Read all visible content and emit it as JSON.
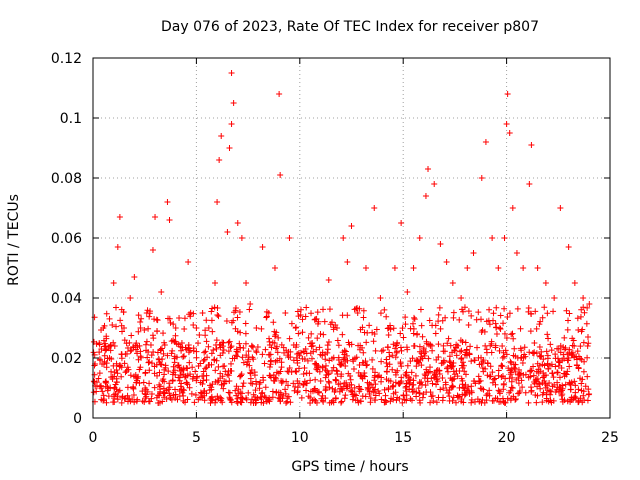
{
  "chart_data": {
    "type": "scatter",
    "title": "Day 076 of 2023, Rate Of TEC Index for receiver p807",
    "xlabel": "GPS time / hours",
    "ylabel": "ROTI / TECUs",
    "xlim": [
      0,
      25
    ],
    "ylim": [
      0,
      0.12
    ],
    "x_ticks": [
      0,
      5,
      10,
      15,
      20,
      25
    ],
    "x_tick_labels": [
      "0",
      "5",
      "10",
      "15",
      "20",
      "25"
    ],
    "y_ticks": [
      0,
      0.02,
      0.04,
      0.06,
      0.08,
      0.1,
      0.12
    ],
    "y_tick_labels": [
      "0",
      "0.02",
      "0.04",
      "0.06",
      "0.08",
      "0.1",
      "0.12"
    ],
    "grid": true,
    "marker": "+",
    "color": "#ff0000",
    "data_x_range": [
      0,
      24
    ],
    "series": [
      {
        "name": "ROTI",
        "points": [
          [
            0.1,
            0.018
          ],
          [
            0.3,
            0.025
          ],
          [
            0.5,
            0.03
          ],
          [
            0.6,
            0.012
          ],
          [
            0.8,
            0.02
          ],
          [
            1.0,
            0.045
          ],
          [
            1.2,
            0.057
          ],
          [
            1.3,
            0.067
          ],
          [
            1.5,
            0.03
          ],
          [
            1.8,
            0.04
          ],
          [
            2.0,
            0.047
          ],
          [
            2.3,
            0.03
          ],
          [
            2.6,
            0.035
          ],
          [
            2.9,
            0.056
          ],
          [
            3.0,
            0.067
          ],
          [
            3.3,
            0.042
          ],
          [
            3.6,
            0.072
          ],
          [
            3.7,
            0.066
          ],
          [
            4.0,
            0.03
          ],
          [
            4.3,
            0.025
          ],
          [
            4.6,
            0.052
          ],
          [
            5.0,
            0.03
          ],
          [
            5.3,
            0.035
          ],
          [
            5.6,
            0.03
          ],
          [
            5.9,
            0.045
          ],
          [
            6.0,
            0.072
          ],
          [
            6.1,
            0.086
          ],
          [
            6.2,
            0.094
          ],
          [
            6.5,
            0.062
          ],
          [
            6.6,
            0.09
          ],
          [
            6.7,
            0.115
          ],
          [
            6.8,
            0.105
          ],
          [
            6.7,
            0.098
          ],
          [
            7.0,
            0.065
          ],
          [
            7.2,
            0.06
          ],
          [
            7.4,
            0.045
          ],
          [
            7.6,
            0.038
          ],
          [
            7.9,
            0.03
          ],
          [
            8.2,
            0.057
          ],
          [
            8.5,
            0.035
          ],
          [
            8.8,
            0.05
          ],
          [
            9.0,
            0.108
          ],
          [
            9.05,
            0.081
          ],
          [
            9.3,
            0.035
          ],
          [
            9.5,
            0.06
          ],
          [
            9.8,
            0.03
          ],
          [
            10.2,
            0.022
          ],
          [
            10.6,
            0.025
          ],
          [
            11.0,
            0.028
          ],
          [
            11.4,
            0.046
          ],
          [
            11.8,
            0.03
          ],
          [
            12.1,
            0.06
          ],
          [
            12.3,
            0.052
          ],
          [
            12.5,
            0.064
          ],
          [
            12.8,
            0.035
          ],
          [
            13.2,
            0.05
          ],
          [
            13.6,
            0.07
          ],
          [
            13.9,
            0.04
          ],
          [
            14.3,
            0.03
          ],
          [
            14.6,
            0.05
          ],
          [
            14.9,
            0.065
          ],
          [
            15.2,
            0.042
          ],
          [
            15.5,
            0.05
          ],
          [
            15.8,
            0.06
          ],
          [
            16.1,
            0.074
          ],
          [
            16.2,
            0.083
          ],
          [
            16.5,
            0.078
          ],
          [
            16.8,
            0.058
          ],
          [
            17.1,
            0.052
          ],
          [
            17.4,
            0.045
          ],
          [
            17.8,
            0.04
          ],
          [
            18.1,
            0.05
          ],
          [
            18.4,
            0.055
          ],
          [
            18.8,
            0.08
          ],
          [
            19.0,
            0.092
          ],
          [
            19.3,
            0.06
          ],
          [
            19.6,
            0.05
          ],
          [
            19.9,
            0.06
          ],
          [
            20.0,
            0.098
          ],
          [
            20.05,
            0.108
          ],
          [
            20.15,
            0.095
          ],
          [
            20.3,
            0.07
          ],
          [
            20.5,
            0.055
          ],
          [
            20.8,
            0.05
          ],
          [
            21.1,
            0.078
          ],
          [
            21.2,
            0.091
          ],
          [
            21.5,
            0.05
          ],
          [
            21.9,
            0.045
          ],
          [
            22.3,
            0.04
          ],
          [
            22.6,
            0.07
          ],
          [
            23.0,
            0.057
          ],
          [
            23.3,
            0.045
          ],
          [
            23.7,
            0.04
          ],
          [
            24.0,
            0.038
          ]
        ],
        "baseline_band": [
          0.005,
          0.025
        ],
        "baseline_count": 1700
      }
    ]
  }
}
